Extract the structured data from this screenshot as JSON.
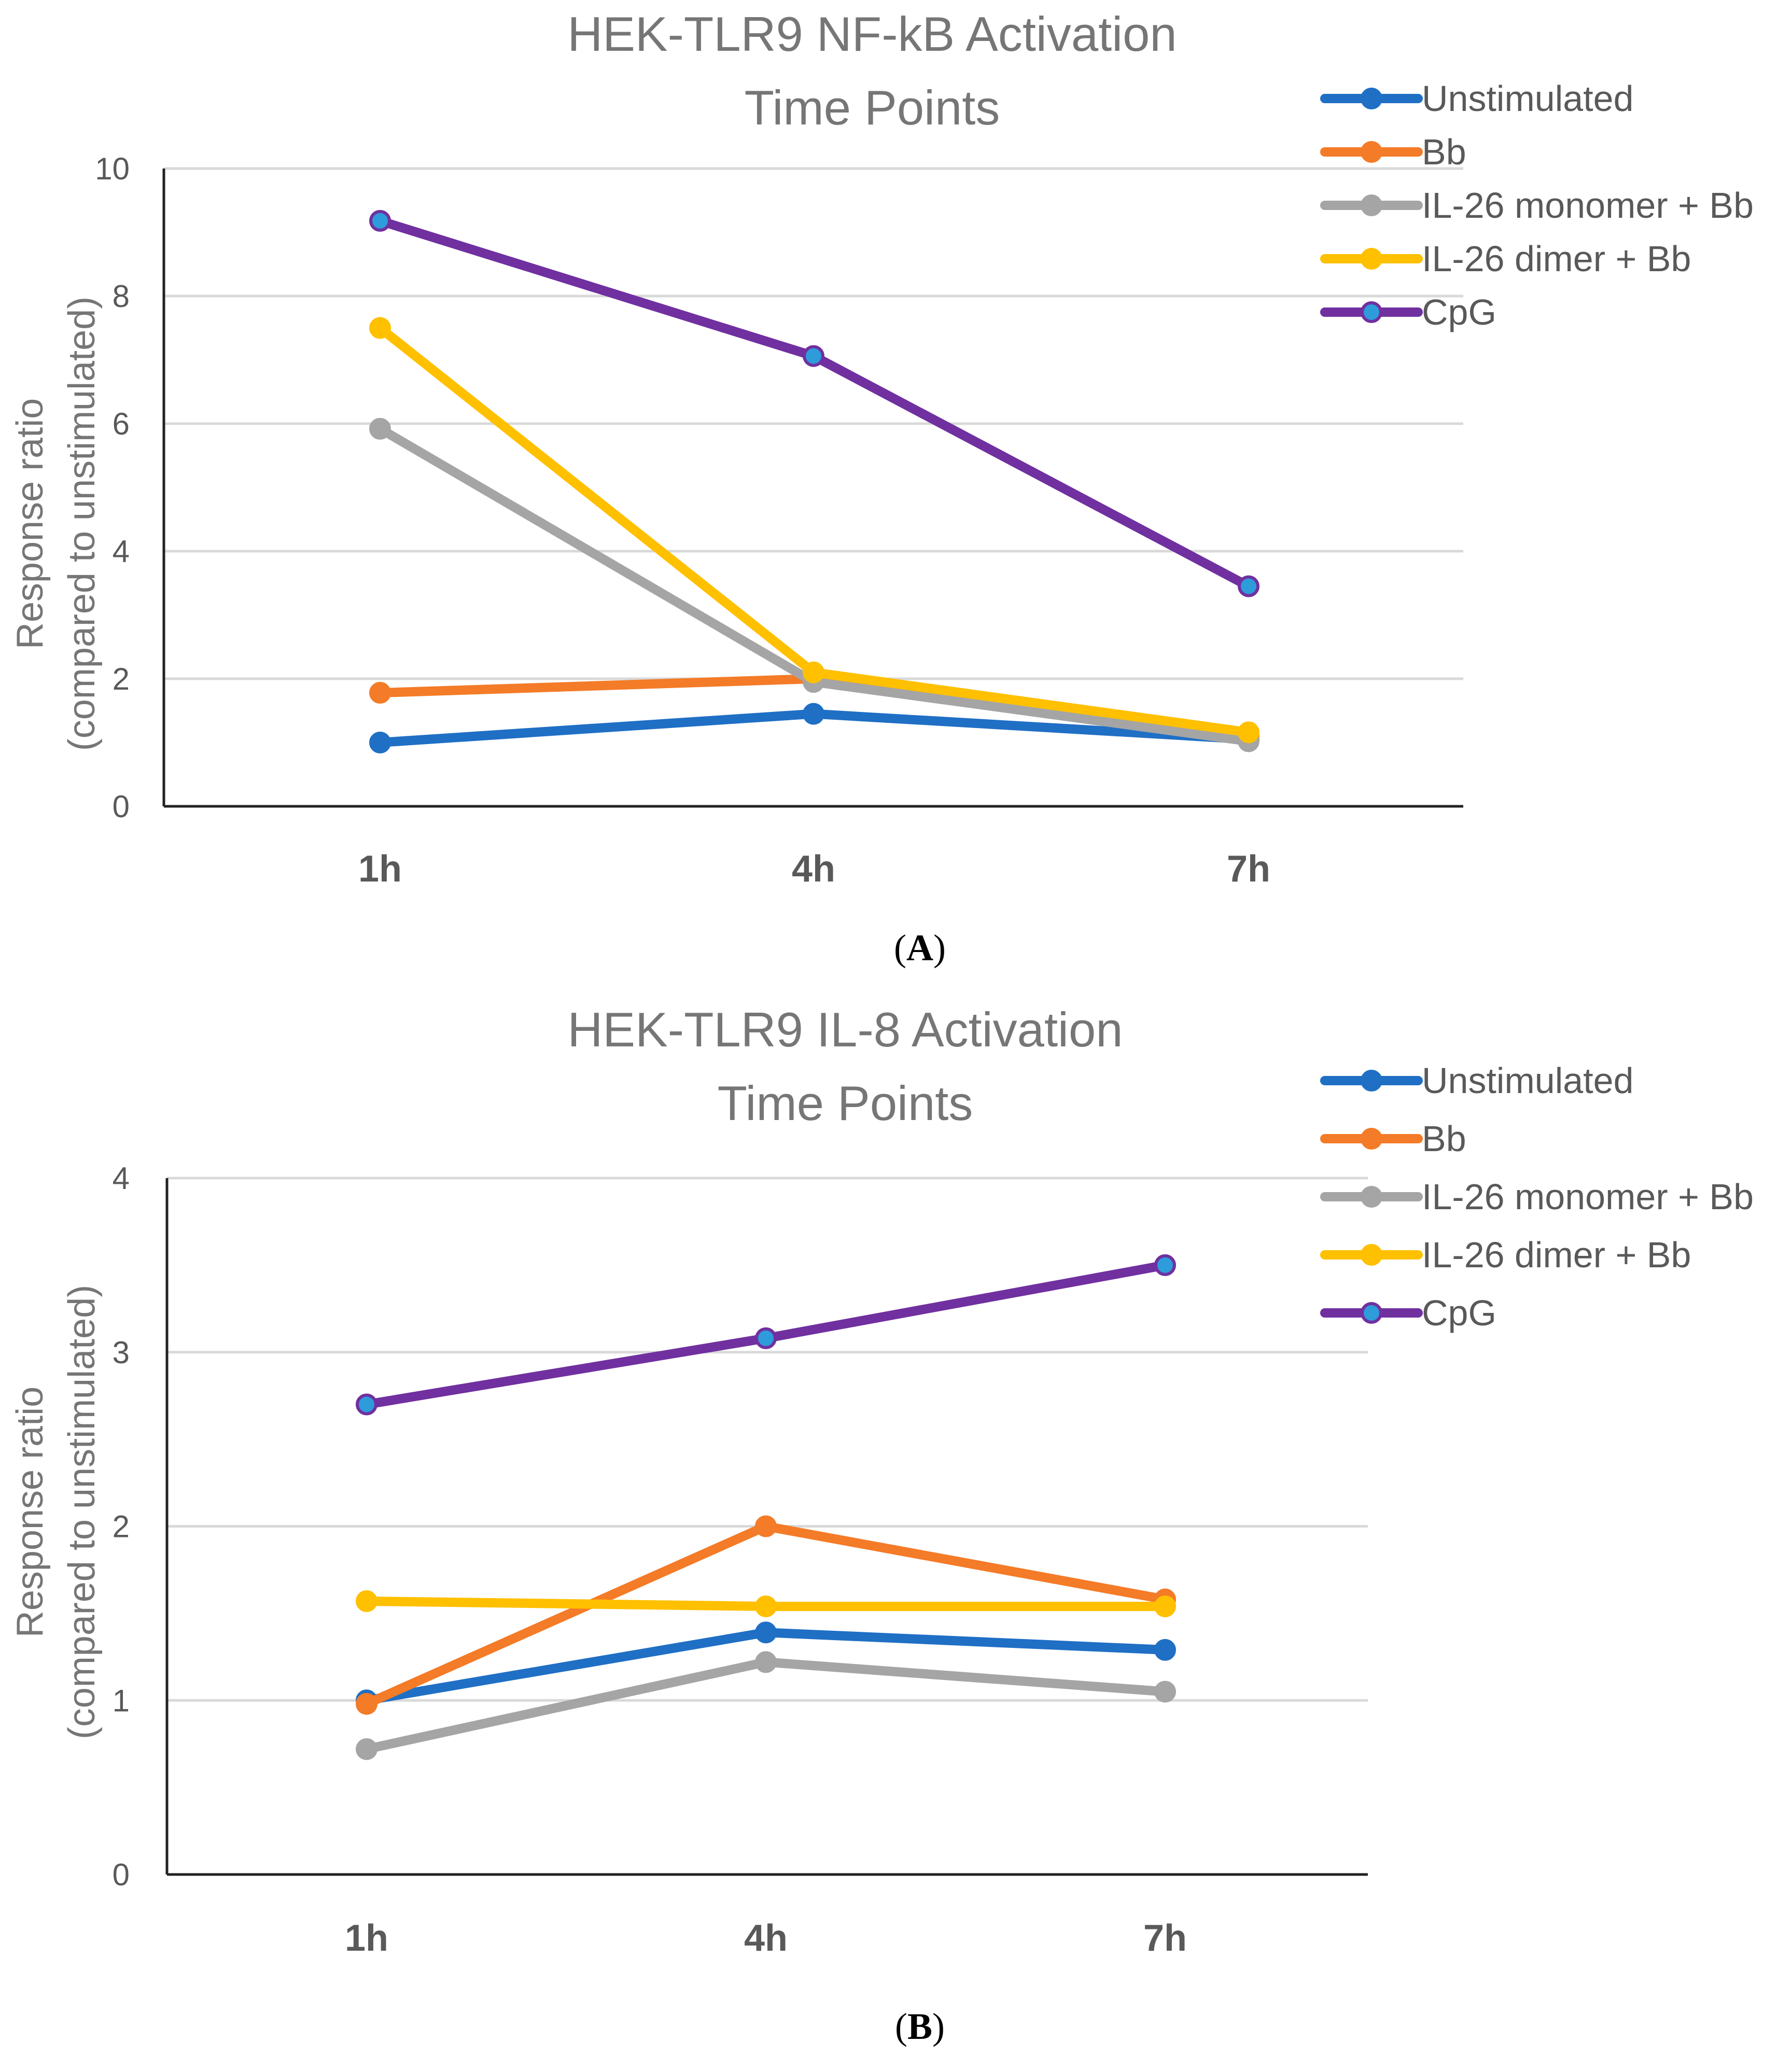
{
  "chart_data": [
    {
      "type": "line",
      "title_lines": [
        "HEK-TLR9 NF-kB Activation",
        "Time Points"
      ],
      "ylabel_lines": [
        "Response ratio",
        "(compared to unstimulated)"
      ],
      "xlabel": "",
      "categories": [
        "1h",
        "4h",
        "7h"
      ],
      "ylim": [
        0,
        10
      ],
      "yticks": [
        0,
        2,
        4,
        6,
        8,
        10
      ],
      "grid": true,
      "legend_position": "top-right",
      "panel_label": {
        "open": "(",
        "letter": "A",
        "close": ")"
      },
      "series": [
        {
          "name": "Unstimulated",
          "color": "#1F6FC5",
          "marker_fill": "#1F6FC5",
          "values": [
            1.0,
            1.45,
            1.05
          ]
        },
        {
          "name": "Bb",
          "color": "#F47B27",
          "marker_fill": "#F47B27",
          "values": [
            1.78,
            2.0,
            1.1
          ]
        },
        {
          "name": "IL-26 monomer + Bb",
          "color": "#A5A5A5",
          "marker_fill": "#A5A5A5",
          "values": [
            5.92,
            1.95,
            1.02
          ]
        },
        {
          "name": "IL-26 dimer + Bb",
          "color": "#FFC000",
          "marker_fill": "#FFC000",
          "values": [
            7.5,
            2.1,
            1.16
          ]
        },
        {
          "name": "CpG",
          "color": "#7030A0",
          "marker_fill": "#2E9BDA",
          "values": [
            9.18,
            7.06,
            3.45
          ]
        }
      ]
    },
    {
      "type": "line",
      "title_lines": [
        "HEK-TLR9 IL-8 Activation",
        "Time Points"
      ],
      "ylabel_lines": [
        "Response ratio",
        "(compared to unstimulated)"
      ],
      "xlabel": "",
      "categories": [
        "1h",
        "4h",
        "7h"
      ],
      "ylim": [
        0,
        4
      ],
      "yticks": [
        0,
        1,
        2,
        3,
        4
      ],
      "grid": true,
      "legend_position": "top-right",
      "panel_label": {
        "open": "(",
        "letter": "B",
        "close": ")"
      },
      "series": [
        {
          "name": "Unstimulated",
          "color": "#1F6FC5",
          "marker_fill": "#1F6FC5",
          "values": [
            1.0,
            1.39,
            1.29
          ]
        },
        {
          "name": "Bb",
          "color": "#F47B27",
          "marker_fill": "#F47B27",
          "values": [
            0.98,
            2.0,
            1.58
          ]
        },
        {
          "name": "IL-26 monomer + Bb",
          "color": "#A5A5A5",
          "marker_fill": "#A5A5A5",
          "values": [
            0.72,
            1.22,
            1.05
          ]
        },
        {
          "name": "IL-26 dimer + Bb",
          "color": "#FFC000",
          "marker_fill": "#FFC000",
          "values": [
            1.57,
            1.54,
            1.54
          ]
        },
        {
          "name": "CpG",
          "color": "#7030A0",
          "marker_fill": "#2E9BDA",
          "values": [
            2.7,
            3.08,
            3.5
          ]
        }
      ]
    }
  ]
}
